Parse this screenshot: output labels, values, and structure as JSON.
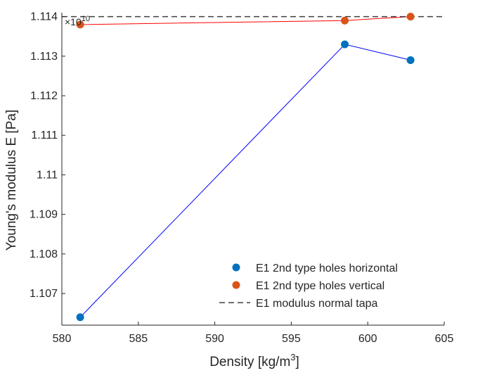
{
  "chart_data": {
    "type": "scatter",
    "xlabel": "Density [kg/m",
    "xlabel_sup": "3",
    "xlabel_end": "]",
    "ylabel": "Young's modulus E [Pa]",
    "y_exponent_prefix": "×10",
    "y_exponent": "10",
    "xlim": [
      580,
      605
    ],
    "ylim": [
      1.1062,
      1.1141
    ],
    "xticks": [
      580,
      585,
      590,
      595,
      600,
      605
    ],
    "yticks": [
      1.107,
      1.108,
      1.109,
      1.11,
      1.111,
      1.112,
      1.113,
      1.114
    ],
    "xtick_labels": [
      "580",
      "585",
      "590",
      "595",
      "600",
      "605"
    ],
    "ytick_labels": [
      "1.107",
      "1.108",
      "1.109",
      "1.11",
      "1.111",
      "1.112",
      "1.113",
      "1.114"
    ],
    "series": [
      {
        "name": "E1 2nd type holes horizontal",
        "marker_color": "#0072BD",
        "line_color": "#0000FF",
        "x": [
          581.2,
          598.5,
          602.8
        ],
        "y": [
          1.1064,
          1.1133,
          1.1129
        ]
      },
      {
        "name": "E1 2nd type holes vertical",
        "marker_color": "#D95319",
        "line_color": "#FF0000",
        "x": [
          581.2,
          598.5,
          602.8
        ],
        "y": [
          1.1138,
          1.1139,
          1.114
        ]
      }
    ],
    "reference_line": {
      "name": "E1 modulus normal tapa",
      "y": 1.114,
      "color": "#404040",
      "style": "dashed"
    },
    "legend": {
      "position": "bottom-right"
    },
    "grid": false
  }
}
